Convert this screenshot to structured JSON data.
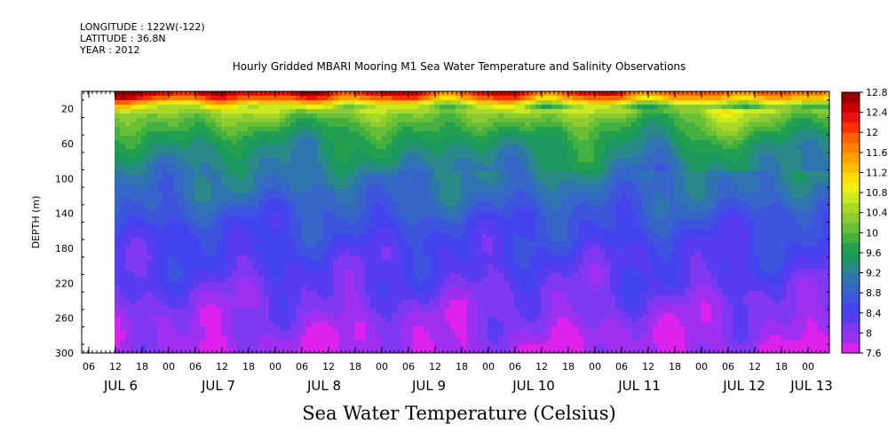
{
  "header": {
    "longitude": "LONGITUDE : 122W(-122)",
    "latitude": "LATITUDE : 36.8N",
    "year": "YEAR : 2012"
  },
  "chart_data": {
    "type": "heatmap",
    "title": "Hourly Gridded MBARI Mooring M1 Sea Water Temperature and Salinity Observations",
    "xlabel": "",
    "ylabel": "DEPTH (m)",
    "units_label": "Sea Water Temperature (Celsius)",
    "y_range": [
      0,
      300
    ],
    "y_inverted": true,
    "y_tick_labels": [
      "20",
      "60",
      "100",
      "140",
      "180",
      "220",
      "260",
      "300"
    ],
    "x_hour_labels": [
      "06",
      "12",
      "18",
      "00",
      "06",
      "12",
      "18",
      "00",
      "06",
      "12",
      "18",
      "00",
      "06",
      "12",
      "18",
      "00",
      "06",
      "12",
      "18",
      "00",
      "06",
      "12",
      "18",
      "00",
      "06",
      "12",
      "18",
      "00"
    ],
    "x_day_labels": [
      "JUL 6",
      "JUL 7",
      "JUL 8",
      "JUL 9",
      "JUL 10",
      "JUL 11",
      "JUL 12",
      "JUL 13"
    ],
    "data_start": "2012-07-06 12:00",
    "data_end": "2012-07-13 00:00",
    "colorbar": {
      "tick_labels": [
        "12.8",
        "12.4",
        "12",
        "11.6",
        "11.2",
        "10.8",
        "10.4",
        "10",
        "9.6",
        "9.2",
        "8.8",
        "8.4",
        "8",
        "7.6"
      ],
      "levels": [
        7.6,
        7.8,
        8.0,
        8.2,
        8.4,
        8.6,
        8.8,
        9.0,
        9.2,
        9.4,
        9.6,
        9.8,
        10.0,
        10.2,
        10.4,
        10.6,
        10.8,
        11.0,
        11.2,
        11.4,
        11.6,
        11.8,
        12.0,
        12.2,
        12.4,
        12.6,
        12.8
      ],
      "colors": [
        "#dd22ee",
        "#a030f0",
        "#8038f0",
        "#5a3cf0",
        "#4444ee",
        "#3d55dd",
        "#3666c8",
        "#2e75b0",
        "#2a8888",
        "#1a9860",
        "#22a050",
        "#44b040",
        "#6abf38",
        "#8ccc30",
        "#aad828",
        "#ccea20",
        "#eef010",
        "#ffe000",
        "#ffc000",
        "#ffa000",
        "#ff8000",
        "#ff6000",
        "#ff3000",
        "#ee1010",
        "#cc0000",
        "#990000"
      ]
    },
    "temperature_profile": {
      "depths": [
        0,
        8,
        16,
        25,
        40,
        60,
        90,
        120,
        150,
        180,
        220,
        260,
        290,
        300
      ],
      "values": [
        12.8,
        12.1,
        11.0,
        10.3,
        9.9,
        9.5,
        9.2,
        8.95,
        8.65,
        8.45,
        8.25,
        8.0,
        7.85,
        7.85
      ]
    }
  }
}
